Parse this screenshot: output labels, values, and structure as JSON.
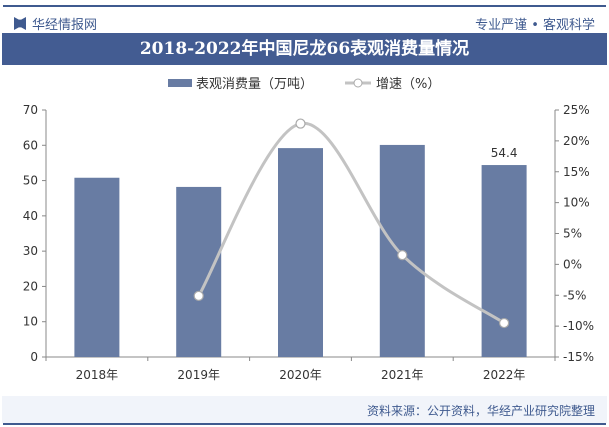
{
  "header": {
    "brand": "华经情报网",
    "slogan": "专业严谨 • 客观科学"
  },
  "footer": {
    "source": "资料来源：公开资料，华经产业研究院整理"
  },
  "colors": {
    "bar": "#687ca3",
    "line": "#c3c3c3",
    "accent": "#435c92"
  },
  "chart_data": {
    "type": "bar+line",
    "title": "2018-2022年中国尼龙66表观消费量情况",
    "categories": [
      "2018年",
      "2019年",
      "2020年",
      "2021年",
      "2022年"
    ],
    "series": [
      {
        "name": "表观消费量（万吨）",
        "type": "bar",
        "axis": "left",
        "values": [
          50.8,
          48.2,
          59.2,
          60.1,
          54.4
        ]
      },
      {
        "name": "增速（%）",
        "type": "line",
        "axis": "right",
        "values": [
          null,
          -5.1,
          22.8,
          1.5,
          -9.5
        ]
      }
    ],
    "data_labels": [
      {
        "category": "2022年",
        "text": "54.4"
      }
    ],
    "y_left": {
      "range": [
        0,
        70
      ],
      "ticks": [
        "0",
        "10",
        "20",
        "30",
        "40",
        "50",
        "60",
        "70"
      ]
    },
    "y_right": {
      "range": [
        -15,
        25
      ],
      "ticks": [
        "-15%",
        "-10%",
        "-5%",
        "0%",
        "5%",
        "10%",
        "15%",
        "20%",
        "25%"
      ]
    },
    "legend": "top",
    "grid": false
  }
}
